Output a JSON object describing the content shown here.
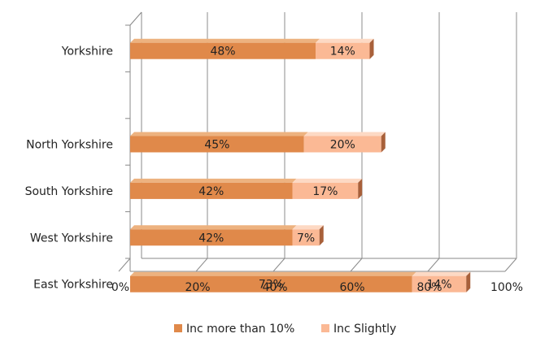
{
  "chart_data": {
    "type": "bar",
    "orientation": "horizontal",
    "stacked": true,
    "three_d": true,
    "categories": [
      "Yorkshire",
      "North Yorkshire",
      "South Yorkshire",
      "West Yorkshire",
      "East Yorkshire"
    ],
    "series": [
      {
        "name": "Inc more than 10%",
        "values": [
          48,
          45,
          42,
          42,
          73
        ],
        "labels": [
          "48%",
          "45%",
          "42%",
          "42%",
          "73%"
        ]
      },
      {
        "name": "Inc Slightly",
        "values": [
          14,
          20,
          17,
          7,
          14
        ],
        "labels": [
          "14%",
          "20%",
          "17%",
          "7%",
          "14%"
        ]
      }
    ],
    "xlim": [
      0,
      100
    ],
    "x_ticks": [
      "0%",
      "20%",
      "40%",
      "60%",
      "80%",
      "100%"
    ],
    "title": "",
    "xlabel": "",
    "ylabel": "",
    "grid": true,
    "legend_position": "bottom",
    "colors": {
      "series_0_front": "#e0894a",
      "series_0_top": "#edb27f",
      "series_1_front": "#fbb995",
      "series_1_top": "#fdd9c4",
      "series_end": "#a8603a",
      "axis": "#888888",
      "grid": "#8c8c8c"
    }
  }
}
